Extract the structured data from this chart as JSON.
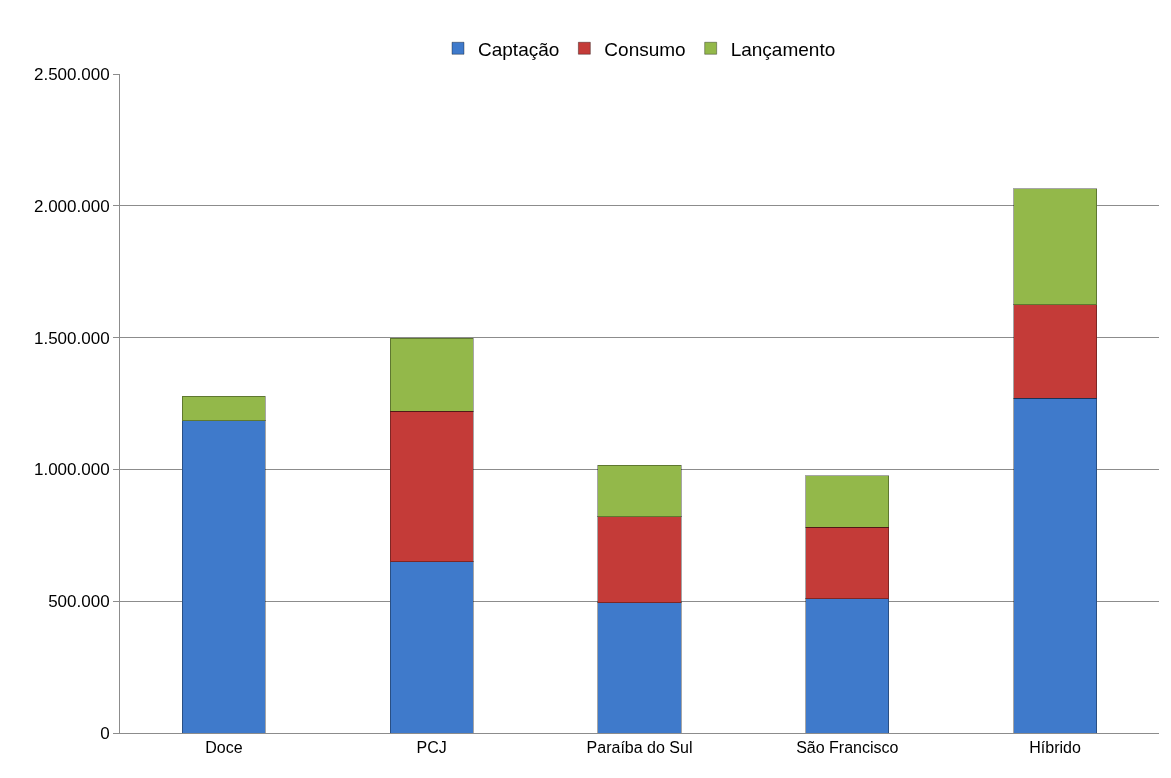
{
  "chart_data": {
    "type": "bar",
    "stacked": true,
    "categories": [
      "Doce",
      "PCJ",
      "Paraíba do Sul",
      "São Francisco",
      "Híbrido"
    ],
    "series": [
      {
        "name": "Captação",
        "color": "#3f7acb",
        "values": [
          1185000,
          649000,
          494000,
          510000,
          1269000
        ]
      },
      {
        "name": "Consumo",
        "color": "#c43b38",
        "values": [
          0,
          572000,
          326000,
          270000,
          355000
        ]
      },
      {
        "name": "Lançamento",
        "color": "#93b84a",
        "values": [
          92000,
          277000,
          196000,
          196000,
          440000
        ]
      }
    ],
    "ylim": [
      0,
      2500000
    ],
    "yticks": [
      {
        "value": 0,
        "label": "0"
      },
      {
        "value": 500000,
        "label": "500.000"
      },
      {
        "value": 1000000,
        "label": "1.000.000"
      },
      {
        "value": 1500000,
        "label": "1.500.000"
      },
      {
        "value": 2000000,
        "label": "2.000.000"
      },
      {
        "value": 2500000,
        "label": "2.500.000"
      }
    ],
    "grid": "y",
    "legend": "top"
  }
}
